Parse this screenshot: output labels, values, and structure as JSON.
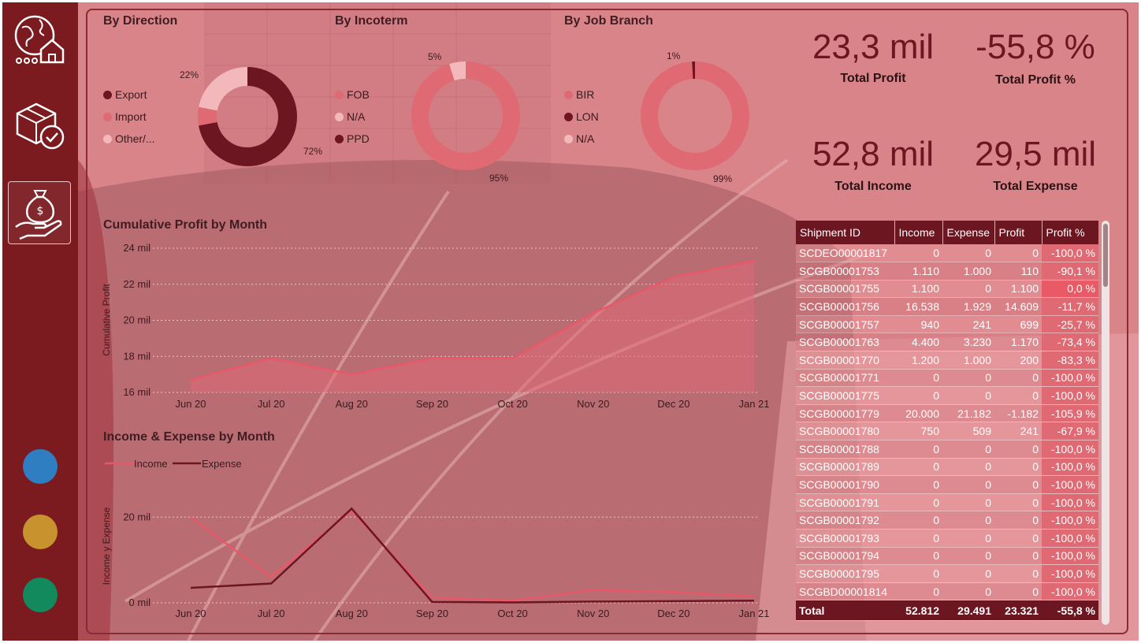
{
  "colors": {
    "dark": "#6b1620",
    "mid": "#e06a74",
    "light": "#f2b8bc",
    "income": "#e85868",
    "expense": "#6b1620"
  },
  "sidebar": {
    "items": [
      {
        "name": "globe-house-icon"
      },
      {
        "name": "package-check-icon"
      },
      {
        "name": "money-bag-hand-icon",
        "active": true
      }
    ],
    "dots": [
      {
        "name": "blue-dot",
        "color": "#2f7ec1"
      },
      {
        "name": "gold-dot",
        "color": "#c8922e"
      },
      {
        "name": "green-dot",
        "color": "#138a5e"
      }
    ]
  },
  "direction": {
    "title": "By Direction",
    "legend": [
      "Export",
      "Import",
      "Other/..."
    ],
    "slices": [
      {
        "name": "Export",
        "value": 72
      },
      {
        "name": "Import",
        "value": 6
      },
      {
        "name": "Other/...",
        "value": 22
      }
    ],
    "labels": [
      "22%",
      "72%"
    ]
  },
  "incoterm": {
    "title": "By Incoterm",
    "legend": [
      "FOB",
      "N/A",
      "PPD"
    ],
    "slices": [
      {
        "name": "FOB",
        "value": 95
      },
      {
        "name": "N/A",
        "value": 5
      },
      {
        "name": "PPD",
        "value": 0
      }
    ],
    "labels": [
      "5%",
      "95%"
    ]
  },
  "branch": {
    "title": "By Job Branch",
    "legend": [
      "BIR",
      "LON",
      "N/A"
    ],
    "slices": [
      {
        "name": "BIR",
        "value": 99
      },
      {
        "name": "LON",
        "value": 1
      },
      {
        "name": "N/A",
        "value": 0
      }
    ],
    "labels": [
      "1%",
      "99%"
    ]
  },
  "kpis": [
    {
      "value": "23,3 mil",
      "label": "Total Profit"
    },
    {
      "value": "-55,8 %",
      "label": "Total Profit %"
    },
    {
      "value": "52,8 mil",
      "label": "Total Income"
    },
    {
      "value": "29,5 mil",
      "label": "Total Expense"
    }
  ],
  "chart_data": [
    {
      "type": "area",
      "title": "Cumulative Profit by Month",
      "xlabel": "",
      "ylabel": "Cumulative Profit",
      "categories": [
        "Jun 20",
        "Jul 20",
        "Aug 20",
        "Sep 20",
        "Oct 20",
        "Nov 20",
        "Dec 20",
        "Jan 21"
      ],
      "values": [
        16.7,
        17.9,
        17.0,
        17.9,
        17.9,
        20.4,
        22.4,
        23.3
      ],
      "yticks": [
        "16 mil",
        "18 mil",
        "20 mil",
        "22 mil",
        "24 mil"
      ],
      "ylim": [
        16,
        24
      ],
      "grid": true
    },
    {
      "type": "line",
      "title": "Income & Expense by Month",
      "xlabel": "",
      "ylabel": "Income y Expense",
      "categories": [
        "Jun 20",
        "Jul 20",
        "Aug 20",
        "Sep 20",
        "Oct 20",
        "Nov 20",
        "Dec 20",
        "Jan 21"
      ],
      "series": [
        {
          "name": "Income",
          "values": [
            20,
            6,
            21.5,
            1.2,
            0.5,
            3,
            2.5,
            1.5
          ]
        },
        {
          "name": "Expense",
          "values": [
            3.5,
            4.5,
            22,
            0.2,
            0.1,
            0.3,
            0.4,
            0.5
          ]
        }
      ],
      "yticks": [
        "0 mil",
        "20 mil"
      ],
      "ylim": [
        0,
        23
      ],
      "grid": true,
      "legend": "top-left"
    }
  ],
  "table": {
    "headers": [
      "Shipment ID",
      "Income",
      "Expense",
      "Profit",
      "Profit %"
    ],
    "rows": [
      [
        "SCDEO00001817",
        "0",
        "0",
        "0",
        "-100,0 %"
      ],
      [
        "SCGB00001753",
        "1.110",
        "1.000",
        "110",
        "-90,1 %"
      ],
      [
        "SCGB00001755",
        "1.100",
        "0",
        "1.100",
        "0,0 %"
      ],
      [
        "SCGB00001756",
        "16.538",
        "1.929",
        "14.609",
        "-11,7 %"
      ],
      [
        "SCGB00001757",
        "940",
        "241",
        "699",
        "-25,7 %"
      ],
      [
        "SCGB00001763",
        "4.400",
        "3.230",
        "1.170",
        "-73,4 %"
      ],
      [
        "SCGB00001770",
        "1.200",
        "1.000",
        "200",
        "-83,3 %"
      ],
      [
        "SCGB00001771",
        "0",
        "0",
        "0",
        "-100,0 %"
      ],
      [
        "SCGB00001775",
        "0",
        "0",
        "0",
        "-100,0 %"
      ],
      [
        "SCGB00001779",
        "20.000",
        "21.182",
        "-1.182",
        "-105,9 %"
      ],
      [
        "SCGB00001780",
        "750",
        "509",
        "241",
        "-67,9 %"
      ],
      [
        "SCGB00001788",
        "0",
        "0",
        "0",
        "-100,0 %"
      ],
      [
        "SCGB00001789",
        "0",
        "0",
        "0",
        "-100,0 %"
      ],
      [
        "SCGB00001790",
        "0",
        "0",
        "0",
        "-100,0 %"
      ],
      [
        "SCGB00001791",
        "0",
        "0",
        "0",
        "-100,0 %"
      ],
      [
        "SCGB00001792",
        "0",
        "0",
        "0",
        "-100,0 %"
      ],
      [
        "SCGB00001793",
        "0",
        "0",
        "0",
        "-100,0 %"
      ],
      [
        "SCGB00001794",
        "0",
        "0",
        "0",
        "-100,0 %"
      ],
      [
        "SCGB00001795",
        "0",
        "0",
        "0",
        "-100,0 %"
      ],
      [
        "SCGBD00001814",
        "0",
        "0",
        "0",
        "-100,0 %"
      ]
    ],
    "total": [
      "Total",
      "52.812",
      "29.491",
      "23.321",
      "-55,8 %"
    ]
  }
}
